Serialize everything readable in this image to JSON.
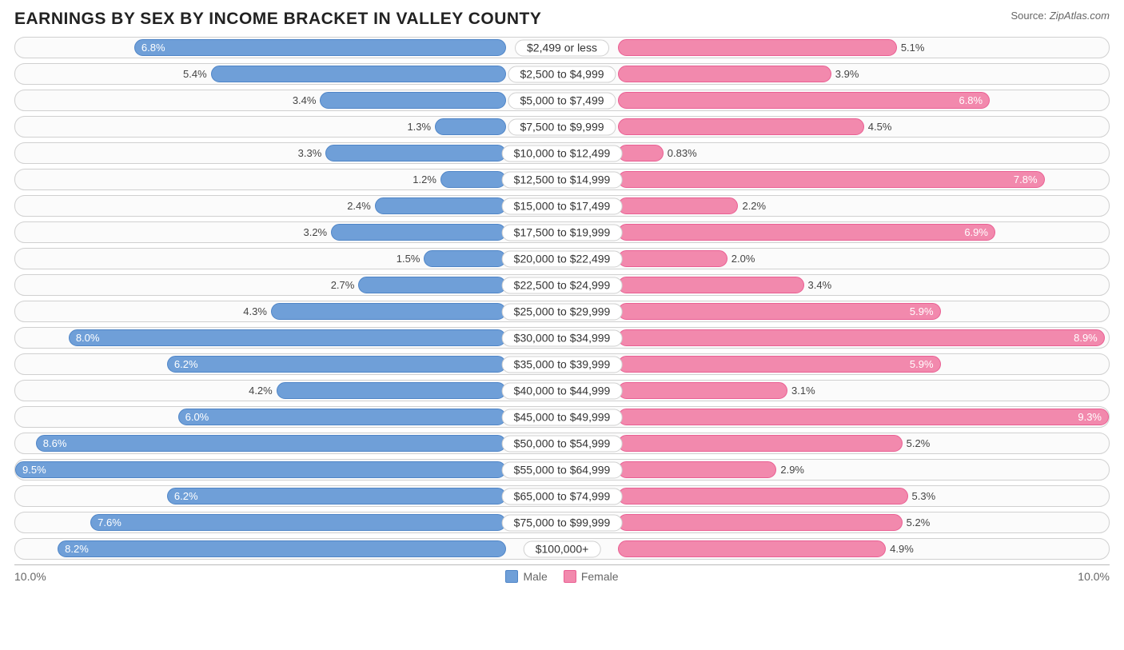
{
  "title": "EARNINGS BY SEX BY INCOME BRACKET IN VALLEY COUNTY",
  "source_label": "Source: ",
  "source_value": "ZipAtlas.com",
  "axis_max_pct": 10.0,
  "axis_label_left": "10.0%",
  "axis_label_right": "10.0%",
  "colors": {
    "male_fill": "#6f9fd8",
    "male_border": "#4f85c7",
    "female_fill": "#f289ad",
    "female_border": "#ea5f93",
    "row_border": "#d0d0d0",
    "row_bg": "#fbfbfb",
    "text": "#444444",
    "inside_text": "#ffffff"
  },
  "legend": {
    "male": "Male",
    "female": "Female"
  },
  "label_inside_threshold": 5.8,
  "rows": [
    {
      "label": "$2,499 or less",
      "male": 6.8,
      "female": 5.1
    },
    {
      "label": "$2,500 to $4,999",
      "male": 5.4,
      "female": 3.9
    },
    {
      "label": "$5,000 to $7,499",
      "male": 3.4,
      "female": 6.8
    },
    {
      "label": "$7,500 to $9,999",
      "male": 1.3,
      "female": 4.5
    },
    {
      "label": "$10,000 to $12,499",
      "male": 3.3,
      "female": 0.83
    },
    {
      "label": "$12,500 to $14,999",
      "male": 1.2,
      "female": 7.8
    },
    {
      "label": "$15,000 to $17,499",
      "male": 2.4,
      "female": 2.2
    },
    {
      "label": "$17,500 to $19,999",
      "male": 3.2,
      "female": 6.9
    },
    {
      "label": "$20,000 to $22,499",
      "male": 1.5,
      "female": 2.0
    },
    {
      "label": "$22,500 to $24,999",
      "male": 2.7,
      "female": 3.4
    },
    {
      "label": "$25,000 to $29,999",
      "male": 4.3,
      "female": 5.9
    },
    {
      "label": "$30,000 to $34,999",
      "male": 8.0,
      "female": 8.9
    },
    {
      "label": "$35,000 to $39,999",
      "male": 6.2,
      "female": 5.9
    },
    {
      "label": "$40,000 to $44,999",
      "male": 4.2,
      "female": 3.1
    },
    {
      "label": "$45,000 to $49,999",
      "male": 6.0,
      "female": 9.3
    },
    {
      "label": "$50,000 to $54,999",
      "male": 8.6,
      "female": 5.2
    },
    {
      "label": "$55,000 to $64,999",
      "male": 9.5,
      "female": 2.9
    },
    {
      "label": "$65,000 to $74,999",
      "male": 6.2,
      "female": 5.3
    },
    {
      "label": "$75,000 to $99,999",
      "male": 7.6,
      "female": 5.2
    },
    {
      "label": "$100,000+",
      "male": 8.2,
      "female": 4.9
    }
  ]
}
